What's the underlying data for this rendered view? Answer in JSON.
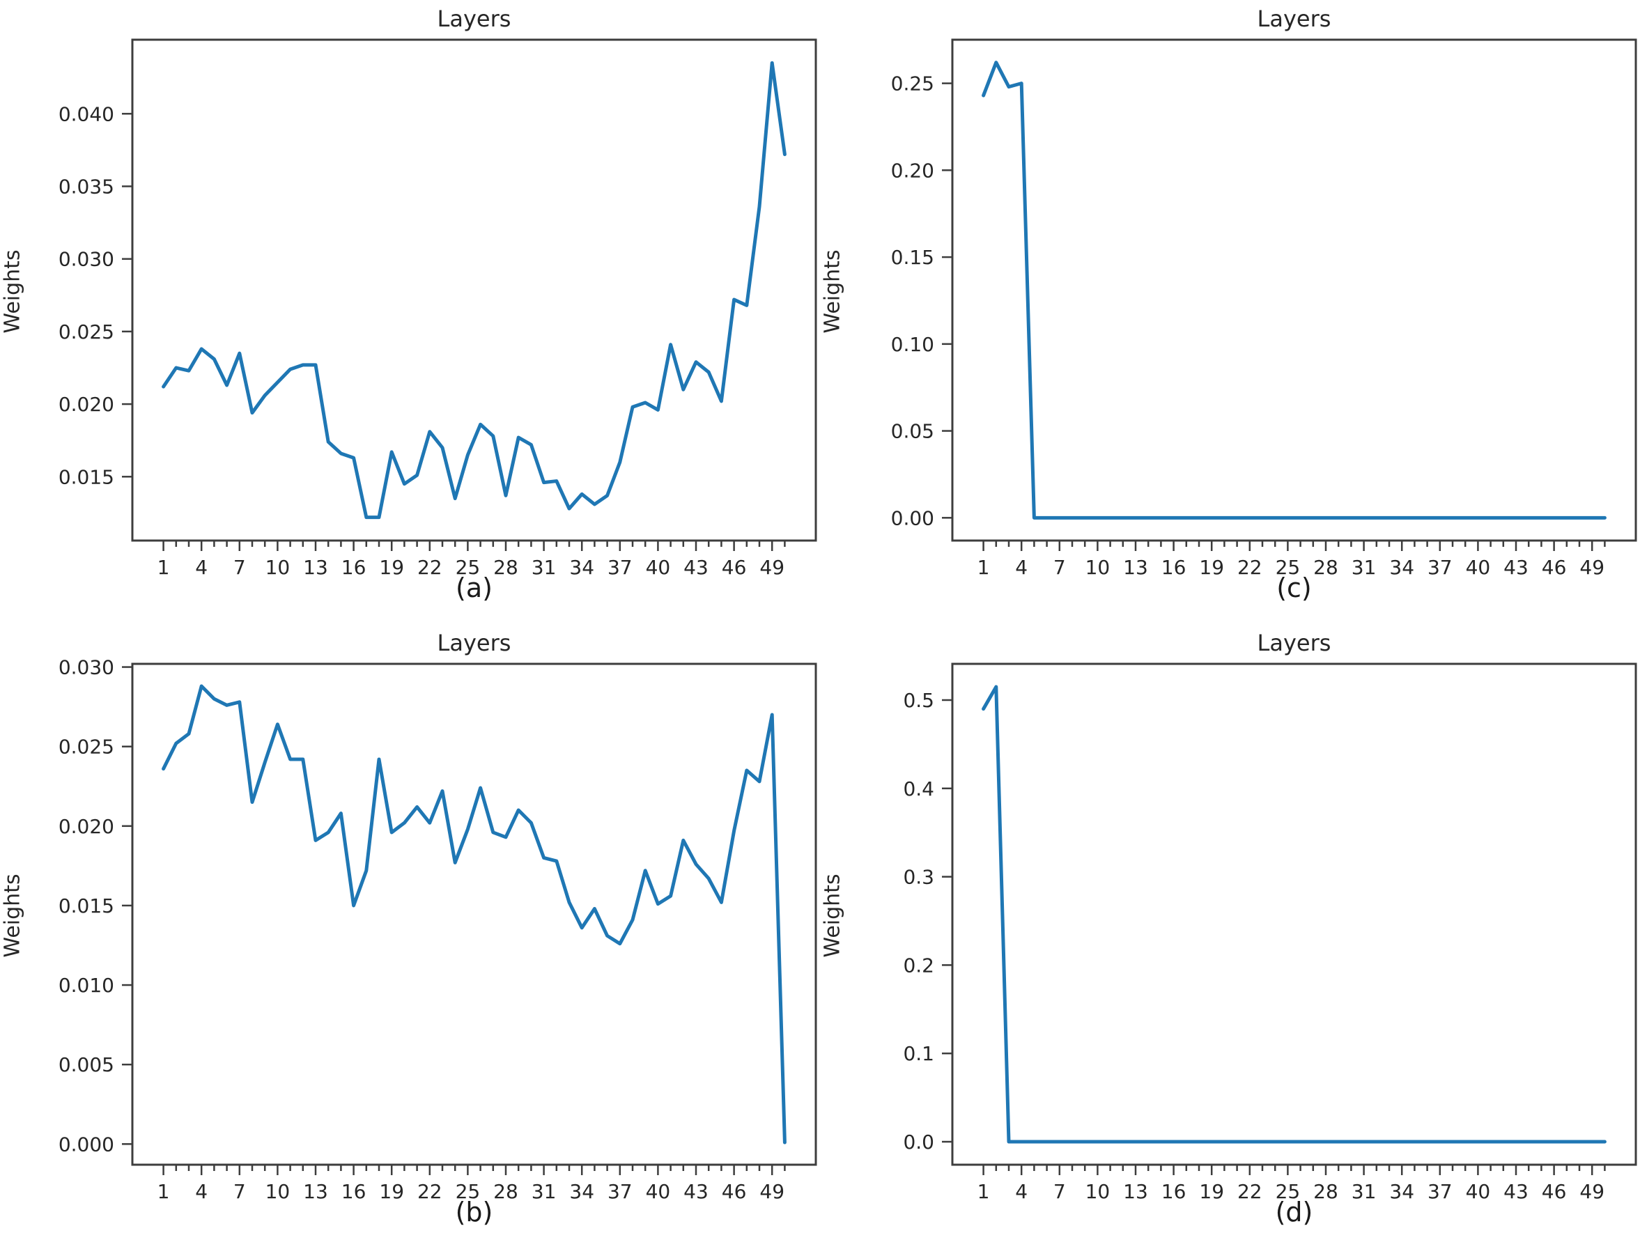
{
  "page": {
    "background": "#ffffff"
  },
  "chart_data": [
    {
      "id": "a",
      "type": "line",
      "title": "Layers",
      "ylabel": "Weights",
      "caption": "(a)",
      "line_color": "#1f77b4",
      "legend": "none",
      "grid": "off",
      "x_start": 1,
      "xlim": [
        -1.45,
        52.45
      ],
      "ylim": [
        0.0106,
        0.0451
      ],
      "xtick_labels": [
        1,
        4,
        7,
        10,
        13,
        16,
        19,
        22,
        25,
        28,
        31,
        34,
        37,
        40,
        43,
        46,
        49
      ],
      "ytick_values": [
        0.015,
        0.02,
        0.025,
        0.03,
        0.035,
        0.04
      ],
      "ytick_labels": [
        "0.015",
        "0.020",
        "0.025",
        "0.030",
        "0.035",
        "0.040"
      ],
      "values": [
        0.0212,
        0.0225,
        0.0223,
        0.0238,
        0.0231,
        0.0213,
        0.0235,
        0.0194,
        0.0206,
        0.0215,
        0.0224,
        0.0227,
        0.0227,
        0.0174,
        0.0166,
        0.0163,
        0.0122,
        0.0122,
        0.0167,
        0.0145,
        0.0151,
        0.0181,
        0.017,
        0.0135,
        0.0165,
        0.0186,
        0.0178,
        0.0137,
        0.0177,
        0.0172,
        0.0146,
        0.0147,
        0.0128,
        0.0138,
        0.0131,
        0.0137,
        0.016,
        0.0198,
        0.0201,
        0.0196,
        0.0241,
        0.021,
        0.0229,
        0.0222,
        0.0202,
        0.0272,
        0.0268,
        0.0336,
        0.0435,
        0.0372
      ]
    },
    {
      "id": "c",
      "type": "line",
      "title": "Layers",
      "ylabel": "Weights",
      "caption": "(c)",
      "line_color": "#1f77b4",
      "legend": "none",
      "grid": "off",
      "x_start": 1,
      "xlim": [
        -1.45,
        52.45
      ],
      "ylim": [
        -0.0131,
        0.2751
      ],
      "xtick_labels": [
        1,
        4,
        7,
        10,
        13,
        16,
        19,
        22,
        25,
        28,
        31,
        34,
        37,
        40,
        43,
        46,
        49
      ],
      "ytick_values": [
        0.0,
        0.05,
        0.1,
        0.15,
        0.2,
        0.25
      ],
      "ytick_labels": [
        "0.00",
        "0.05",
        "0.10",
        "0.15",
        "0.20",
        "0.25"
      ],
      "values": [
        0.243,
        0.262,
        0.248,
        0.25,
        0.0,
        0.0,
        0.0,
        0.0,
        0.0,
        0.0,
        0.0,
        0.0,
        0.0,
        0.0,
        0.0,
        0.0,
        0.0,
        0.0,
        0.0,
        0.0,
        0.0,
        0.0,
        0.0,
        0.0,
        0.0,
        0.0,
        0.0,
        0.0,
        0.0,
        0.0,
        0.0,
        0.0,
        0.0,
        0.0,
        0.0,
        0.0,
        0.0,
        0.0,
        0.0,
        0.0,
        0.0,
        0.0,
        0.0,
        0.0,
        0.0,
        0.0,
        0.0,
        0.0,
        0.0,
        0.0
      ]
    },
    {
      "id": "b",
      "type": "line",
      "title": "Layers",
      "ylabel": "Weights",
      "caption": "(b)",
      "line_color": "#1f77b4",
      "legend": "none",
      "grid": "off",
      "x_start": 1,
      "xlim": [
        -1.45,
        52.45
      ],
      "ylim": [
        -0.0013,
        0.0302
      ],
      "xtick_labels": [
        1,
        4,
        7,
        10,
        13,
        16,
        19,
        22,
        25,
        28,
        31,
        34,
        37,
        40,
        43,
        46,
        49
      ],
      "ytick_values": [
        0.0,
        0.005,
        0.01,
        0.015,
        0.02,
        0.025,
        0.03
      ],
      "ytick_labels": [
        "0.000",
        "0.005",
        "0.010",
        "0.015",
        "0.020",
        "0.025",
        "0.030"
      ],
      "values": [
        0.0236,
        0.0252,
        0.0258,
        0.0288,
        0.028,
        0.0276,
        0.0278,
        0.0215,
        0.024,
        0.0264,
        0.0242,
        0.0242,
        0.0191,
        0.0196,
        0.0208,
        0.015,
        0.0172,
        0.0242,
        0.0196,
        0.0202,
        0.0212,
        0.0202,
        0.0222,
        0.0177,
        0.0198,
        0.0224,
        0.0196,
        0.0193,
        0.021,
        0.0202,
        0.018,
        0.0178,
        0.0152,
        0.0136,
        0.0148,
        0.0131,
        0.0126,
        0.0141,
        0.0172,
        0.0151,
        0.0156,
        0.0191,
        0.0176,
        0.0167,
        0.0152,
        0.0197,
        0.0235,
        0.0228,
        0.027,
        0.0001
      ]
    },
    {
      "id": "d",
      "type": "line",
      "title": "Layers",
      "ylabel": "Weights",
      "caption": "(d)",
      "line_color": "#1f77b4",
      "legend": "none",
      "grid": "off",
      "x_start": 1,
      "xlim": [
        -1.45,
        52.45
      ],
      "ylim": [
        -0.026,
        0.541
      ],
      "xtick_labels": [
        1,
        4,
        7,
        10,
        13,
        16,
        19,
        22,
        25,
        28,
        31,
        34,
        37,
        40,
        43,
        46,
        49
      ],
      "ytick_values": [
        0.0,
        0.1,
        0.2,
        0.3,
        0.4,
        0.5
      ],
      "ytick_labels": [
        "0.0",
        "0.1",
        "0.2",
        "0.3",
        "0.4",
        "0.5"
      ],
      "values": [
        0.49,
        0.515,
        0.0,
        0.0,
        0.0,
        0.0,
        0.0,
        0.0,
        0.0,
        0.0,
        0.0,
        0.0,
        0.0,
        0.0,
        0.0,
        0.0,
        0.0,
        0.0,
        0.0,
        0.0,
        0.0,
        0.0,
        0.0,
        0.0,
        0.0,
        0.0,
        0.0,
        0.0,
        0.0,
        0.0,
        0.0,
        0.0,
        0.0,
        0.0,
        0.0,
        0.0,
        0.0,
        0.0,
        0.0,
        0.0,
        0.0,
        0.0,
        0.0,
        0.0,
        0.0,
        0.0,
        0.0,
        0.0,
        0.0,
        0.0
      ]
    }
  ]
}
